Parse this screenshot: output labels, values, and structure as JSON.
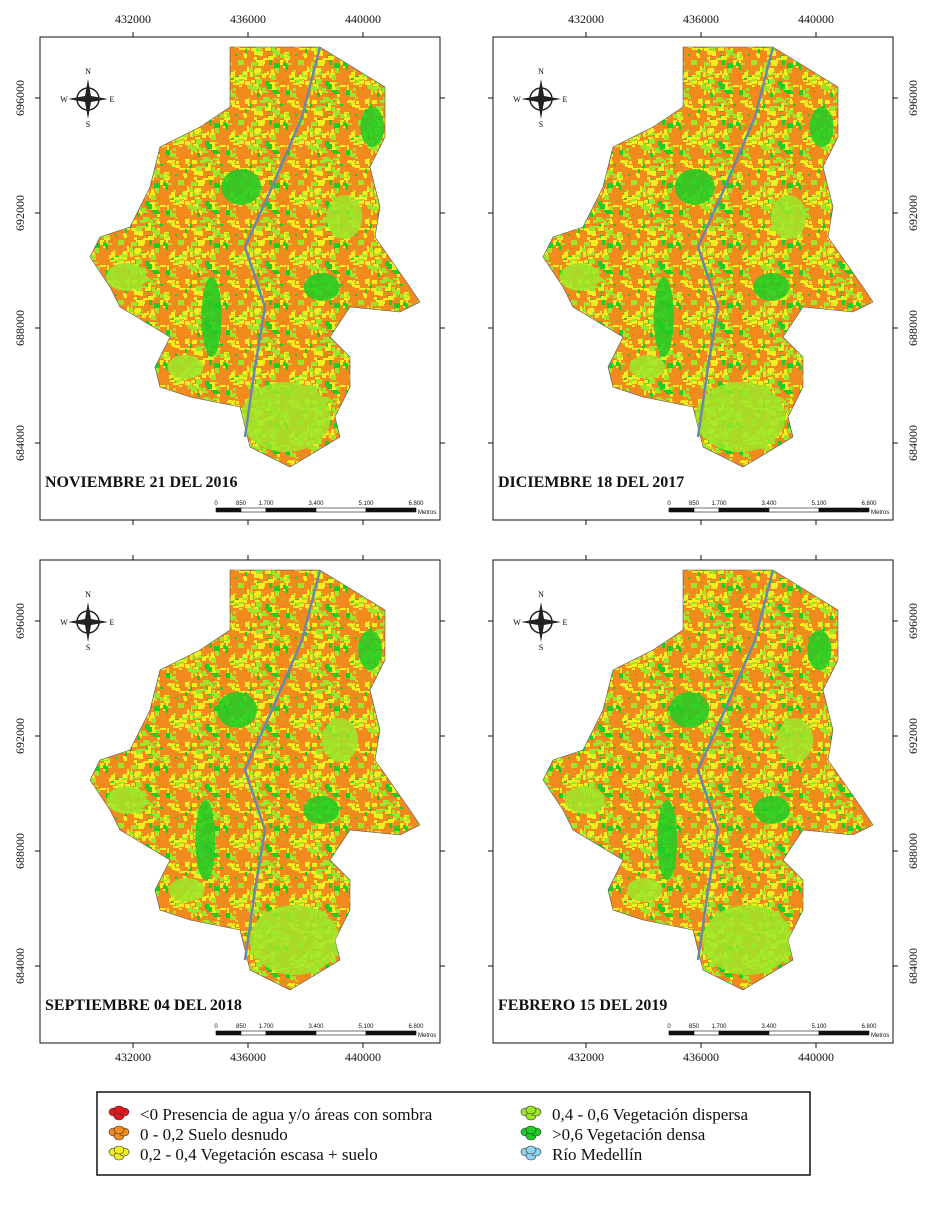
{
  "panels": [
    {
      "title": "NOVIEMBRE 21 DEL 2016",
      "x_side": "top",
      "y_side": "left"
    },
    {
      "title": "DICIEMBRE 18 DEL 2017",
      "x_side": "top",
      "y_side": "right"
    },
    {
      "title": "SEPTIEMBRE 04 DEL 2018",
      "x_side": "bottom",
      "y_side": "left"
    },
    {
      "title": "FEBRERO 15 DEL 2019",
      "x_side": "bottom",
      "y_side": "right"
    }
  ],
  "x_ticks": [
    432000,
    436000,
    440000
  ],
  "y_ticks": [
    684000,
    688000,
    692000,
    696000
  ],
  "compass": {
    "n": "N",
    "s": "S",
    "e": "E",
    "w": "W"
  },
  "scale_bar": {
    "labels": [
      "0",
      "850",
      "1.700",
      "3.400",
      "5.100",
      "6.800"
    ],
    "unit": "Metros"
  },
  "legend": [
    {
      "label": "<0 Presencia de agua y/o áreas con sombra",
      "color": "#e3181b"
    },
    {
      "label": "0 - 0,2 Suelo desnudo",
      "color": "#f28a1e"
    },
    {
      "label": "0,2 - 0,4 Vegetación escasa + suelo",
      "color": "#f2ee1f"
    },
    {
      "label": "0,4 - 0,6 Vegetación dispersa",
      "color": "#9de62a"
    },
    {
      "label": ">0,6  Vegetación densa",
      "color": "#1dcc25"
    },
    {
      "label": "Río Medellín",
      "color": "#8fd3f0"
    }
  ]
}
